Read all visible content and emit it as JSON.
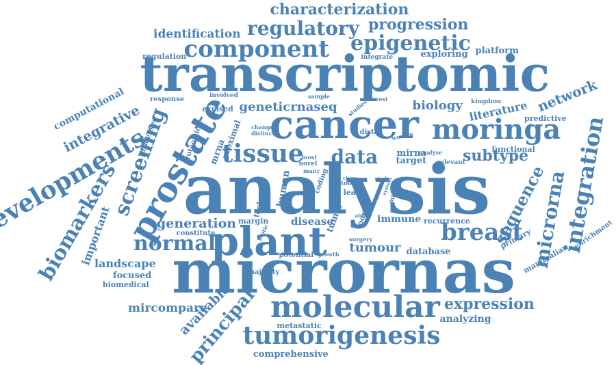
{
  "color": "#4a82b5",
  "words": [
    {
      "text": "characterization"
    },
    {
      "text": "identification"
    },
    {
      "text": "regulatory"
    },
    {
      "text": "progression"
    },
    {
      "text": "component"
    },
    {
      "text": "epigenetic"
    },
    {
      "text": "regulation"
    },
    {
      "text": "integrate"
    },
    {
      "text": "exploring"
    },
    {
      "text": "platform"
    },
    {
      "text": "transcriptomic"
    },
    {
      "text": "computational"
    },
    {
      "text": "response"
    },
    {
      "text": "involved"
    },
    {
      "text": "sample"
    },
    {
      "text": "interest"
    },
    {
      "text": "integrative"
    },
    {
      "text": "excised"
    },
    {
      "text": "geneticrnaseq"
    },
    {
      "text": "studies"
    },
    {
      "text": "biology"
    },
    {
      "text": "kingdom"
    },
    {
      "text": "literature"
    },
    {
      "text": "network"
    },
    {
      "text": "cancer"
    },
    {
      "text": "moringa"
    },
    {
      "text": "predictive"
    },
    {
      "text": "screening"
    },
    {
      "text": "prostate"
    },
    {
      "text": "developments"
    },
    {
      "text": "proximal"
    },
    {
      "text": "mrna"
    },
    {
      "text": "change"
    },
    {
      "text": "distinct"
    },
    {
      "text": "distal"
    },
    {
      "text": "woman"
    },
    {
      "text": "processes"
    },
    {
      "text": "proteomic"
    },
    {
      "text": "tissue"
    },
    {
      "text": "most"
    },
    {
      "text": "novel"
    },
    {
      "text": "data"
    },
    {
      "text": "mirna"
    },
    {
      "text": "analyse"
    },
    {
      "text": "functional"
    },
    {
      "text": "subtype"
    },
    {
      "text": "target"
    },
    {
      "text": "relevant"
    },
    {
      "text": "integration"
    },
    {
      "text": "many"
    },
    {
      "text": "coding"
    },
    {
      "text": "clear"
    },
    {
      "text": "tool"
    },
    {
      "text": "study"
    },
    {
      "text": "analysis"
    },
    {
      "text": "human"
    },
    {
      "text": "technical"
    },
    {
      "text": "leaf"
    },
    {
      "text": "mirnas"
    },
    {
      "text": "system"
    },
    {
      "text": "sequence"
    },
    {
      "text": "microrna"
    },
    {
      "text": "biomarkers"
    },
    {
      "text": "important"
    },
    {
      "text": "tumor"
    },
    {
      "text": "portal"
    },
    {
      "text": "ability"
    },
    {
      "text": "enrichment"
    },
    {
      "text": "generation"
    },
    {
      "text": "margin"
    },
    {
      "text": "disease"
    },
    {
      "text": "immune"
    },
    {
      "text": "recurrence"
    },
    {
      "text": "breast"
    },
    {
      "text": "primary"
    },
    {
      "text": "constitute"
    },
    {
      "text": "biotic"
    },
    {
      "text": "normal"
    },
    {
      "text": "plant"
    },
    {
      "text": "surgery"
    },
    {
      "text": "tumour"
    },
    {
      "text": "database"
    },
    {
      "text": "landscape"
    },
    {
      "text": "potential"
    },
    {
      "text": "growth"
    },
    {
      "text": "mammalian"
    },
    {
      "text": "focused"
    },
    {
      "text": "majority"
    },
    {
      "text": "micrornas"
    },
    {
      "text": "biomedical"
    },
    {
      "text": "mircompare"
    },
    {
      "text": "available"
    },
    {
      "text": "molecular"
    },
    {
      "text": "expression"
    },
    {
      "text": "principal"
    },
    {
      "text": "metastatic"
    },
    {
      "text": "analyzing"
    },
    {
      "text": "tumorigenesis"
    },
    {
      "text": "comprehensive"
    }
  ]
}
